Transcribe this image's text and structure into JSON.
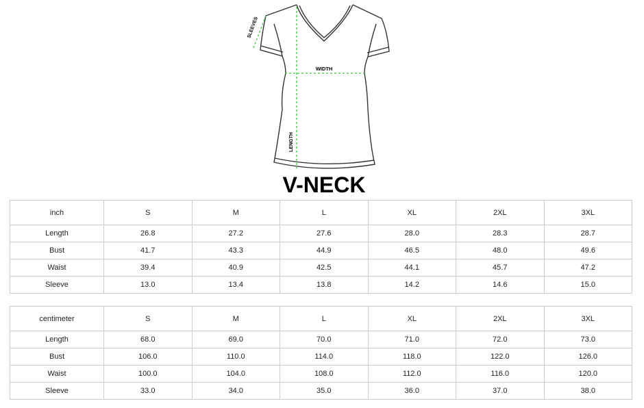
{
  "diagram": {
    "labels": {
      "sleeves": "SLEEVES",
      "width": "WIDTH",
      "length": "LENGTH"
    },
    "guide_color": "#3cc43c"
  },
  "title": "V-NECK",
  "tables": [
    {
      "unit": "inch",
      "sizes": [
        "S",
        "M",
        "L",
        "XL",
        "2XL",
        "3XL"
      ],
      "rows": [
        {
          "label": "Length",
          "values": [
            "26.8",
            "27.2",
            "27.6",
            "28.0",
            "28.3",
            "28.7"
          ]
        },
        {
          "label": "Bust",
          "values": [
            "41.7",
            "43.3",
            "44.9",
            "46.5",
            "48.0",
            "49.6"
          ]
        },
        {
          "label": "Waist",
          "values": [
            "39.4",
            "40.9",
            "42.5",
            "44.1",
            "45.7",
            "47.2"
          ]
        },
        {
          "label": "Sleeve",
          "values": [
            "13.0",
            "13.4",
            "13.8",
            "14.2",
            "14.6",
            "15.0"
          ]
        }
      ]
    },
    {
      "unit": "centimeter",
      "sizes": [
        "S",
        "M",
        "L",
        "XL",
        "2XL",
        "3XL"
      ],
      "rows": [
        {
          "label": "Length",
          "values": [
            "68.0",
            "69.0",
            "70.0",
            "71.0",
            "72.0",
            "73.0"
          ]
        },
        {
          "label": "Bust",
          "values": [
            "106.0",
            "110.0",
            "114.0",
            "118.0",
            "122.0",
            "126.0"
          ]
        },
        {
          "label": "Waist",
          "values": [
            "100.0",
            "104.0",
            "108.0",
            "112.0",
            "116.0",
            "120.0"
          ]
        },
        {
          "label": "Sleeve",
          "values": [
            "33.0",
            "34.0",
            "35.0",
            "36.0",
            "37.0",
            "38.0"
          ]
        }
      ]
    }
  ]
}
